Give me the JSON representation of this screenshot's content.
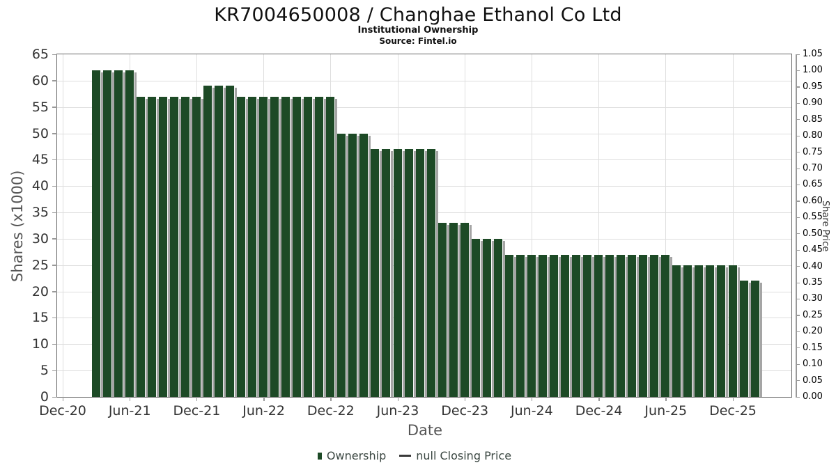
{
  "header": {
    "title": "KR7004650008 / Changhae Ethanol Co Ltd",
    "subtitle": "Institutional Ownership",
    "source": "Source: Fintel.io"
  },
  "chart_data": {
    "type": "bar",
    "title": "KR7004650008 / Changhae Ethanol Co Ltd",
    "subtitle": "Institutional Ownership",
    "source": "Source: Fintel.io",
    "xlabel": "Date",
    "ylabel_left": "Shares (x1000)",
    "ylabel_right": "Share Price",
    "grid": true,
    "legend_position": "bottom",
    "x_tick_labels": [
      "Dec-20",
      "Jun-21",
      "Dec-21",
      "Jun-22",
      "Dec-22",
      "Jun-23",
      "Dec-23",
      "Jun-24",
      "Dec-24",
      "Jun-25",
      "Dec-25"
    ],
    "y_axis_left": {
      "min": 0,
      "max": 65,
      "step": 5
    },
    "y_axis_right": {
      "min": 0.0,
      "max": 1.05,
      "step": 0.05,
      "decimals": 2
    },
    "bar_color": "#1d4a26",
    "series": [
      {
        "name": "Ownership",
        "type": "bar",
        "unit": "shares x1000",
        "frequency": "monthly",
        "start_month": "Mar-21",
        "end_month": "Feb-26",
        "values": [
          62,
          62,
          62,
          62,
          57,
          57,
          57,
          57,
          57,
          57,
          59,
          59,
          59,
          57,
          57,
          57,
          57,
          57,
          57,
          57,
          57,
          57,
          50,
          50,
          50,
          47,
          47,
          47,
          47,
          47,
          47,
          33,
          33,
          33,
          30,
          30,
          30,
          27,
          27,
          27,
          27,
          27,
          27,
          27,
          27,
          27,
          27,
          27,
          27,
          27,
          27,
          27,
          25,
          25,
          25,
          25,
          25,
          25,
          22,
          22
        ]
      },
      {
        "name": "null Closing Price",
        "type": "line",
        "values": null
      }
    ],
    "legend": {
      "items": [
        {
          "label": "Ownership",
          "marker": "square",
          "color": "#1d4a26"
        },
        {
          "label": "null Closing Price",
          "marker": "line",
          "color": "#3a3a3a"
        }
      ]
    }
  }
}
